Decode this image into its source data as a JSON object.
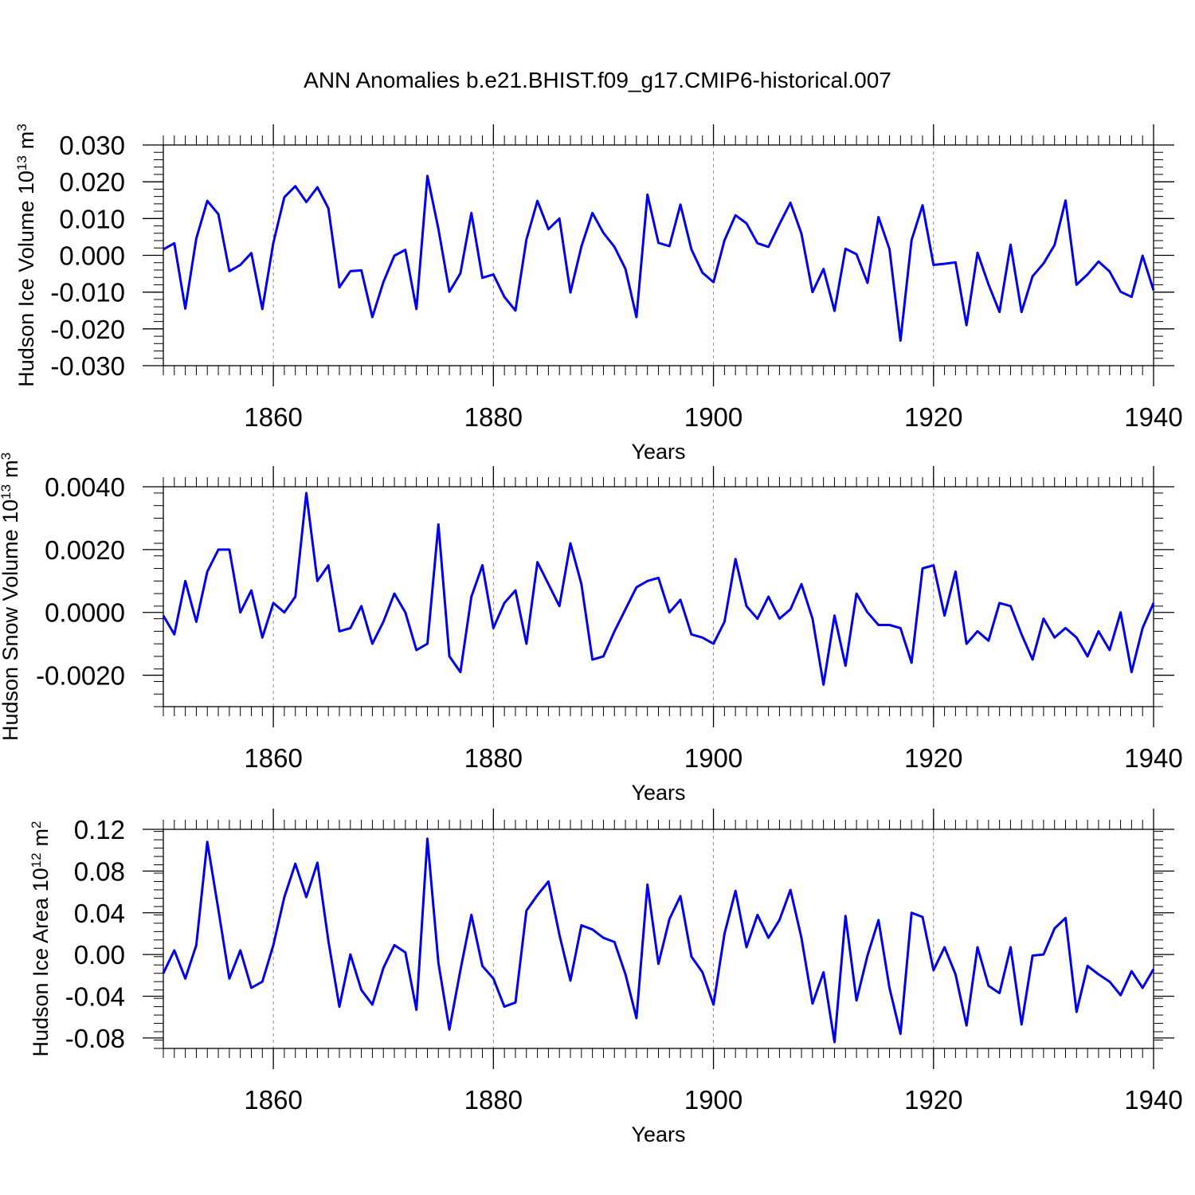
{
  "title": "ANN Anomalies b.e21.BHIST.f09_g17.CMIP6-historical.007",
  "line_color": "#0000ee",
  "chart_data": [
    {
      "type": "line",
      "ylabel": "Hudson Ice Volume 10",
      "ylabel_exp": "13",
      "ylabel_unit": "m",
      "ylabel_unit_exp": "3",
      "xlabel": "Years",
      "xlim": [
        1850,
        1940
      ],
      "ylim": [
        -0.03,
        0.03
      ],
      "xticks": [
        1860,
        1880,
        1900,
        1920,
        1940
      ],
      "yticks": [
        -0.03,
        -0.02,
        -0.01,
        0.0,
        0.01,
        0.02,
        0.03
      ],
      "ytick_labels": [
        "-0.030",
        "-0.020",
        "-0.010",
        "0.000",
        "0.010",
        "0.020",
        "0.030"
      ],
      "ytick_minor": 0.002,
      "grid_x": "dashed",
      "x_start": 1850,
      "values": [
        0.0016,
        0.0033,
        -0.0145,
        0.0046,
        0.0148,
        0.0112,
        -0.0043,
        -0.0026,
        0.0006,
        -0.0146,
        0.0034,
        0.0158,
        0.0188,
        0.0145,
        0.0185,
        0.0128,
        -0.0087,
        -0.0043,
        -0.0041,
        -0.0168,
        -0.0073,
        -0.0001,
        0.0015,
        -0.0146,
        0.0216,
        0.0072,
        -0.0099,
        -0.0049,
        0.0115,
        -0.0061,
        -0.0052,
        -0.0113,
        -0.015,
        0.0043,
        0.0148,
        0.0071,
        0.01,
        -0.0101,
        0.0024,
        0.0115,
        0.0061,
        0.0023,
        -0.0037,
        -0.0168,
        0.0165,
        0.0034,
        0.0025,
        0.0138,
        0.0016,
        -0.0047,
        -0.0073,
        0.0041,
        0.0109,
        0.0087,
        0.0033,
        0.0023,
        0.0085,
        0.0143,
        0.0059,
        -0.01,
        -0.0037,
        -0.0151,
        0.0018,
        0.0003,
        -0.0075,
        0.0104,
        0.0017,
        -0.0232,
        0.0041,
        0.0136,
        -0.0026,
        -0.0023,
        -0.0019,
        -0.019,
        0.0007,
        -0.0079,
        -0.0154,
        0.0029,
        -0.0154,
        -0.0057,
        -0.0022,
        0.0028,
        0.0149,
        -0.008,
        -0.0052,
        -0.0017,
        -0.0044,
        -0.0099,
        -0.0113,
        -0.0001,
        -0.0095
      ]
    },
    {
      "type": "line",
      "ylabel": "Hudson Snow Volume 10",
      "ylabel_exp": "13",
      "ylabel_unit": "m",
      "ylabel_unit_exp": "3",
      "xlabel": "Years",
      "xlim": [
        1850,
        1940
      ],
      "ylim": [
        -0.003,
        0.004
      ],
      "xticks": [
        1860,
        1880,
        1900,
        1920,
        1940
      ],
      "yticks": [
        -0.002,
        0.0,
        0.002,
        0.004
      ],
      "ytick_labels": [
        "-0.0020",
        "0.0000",
        "0.0020",
        "0.0040"
      ],
      "ytick_minor": 0.0004,
      "grid_x": "dashed",
      "x_start": 1850,
      "values": [
        -0.0001,
        -0.0007,
        0.001,
        -0.0003,
        0.0013,
        0.002,
        0.002,
        0.0,
        0.0007,
        -0.0008,
        0.0003,
        0.0,
        0.0005,
        0.0038,
        0.001,
        0.0015,
        -0.0006,
        -0.0005,
        0.0002,
        -0.001,
        -0.0003,
        0.0006,
        0.0,
        -0.0012,
        -0.001,
        0.0028,
        -0.0014,
        -0.0019,
        0.0005,
        0.0015,
        -0.0005,
        0.0003,
        0.0007,
        -0.001,
        0.0016,
        0.0009,
        0.0002,
        0.0022,
        0.0009,
        -0.0015,
        -0.0014,
        -0.0006,
        0.0001,
        0.0008,
        0.001,
        0.0011,
        0.0,
        0.0004,
        -0.0007,
        -0.0008,
        -0.001,
        -0.0003,
        0.0017,
        0.0002,
        -0.0002,
        0.0005,
        -0.0002,
        0.0001,
        0.0009,
        -0.0002,
        -0.0023,
        -0.0001,
        -0.0017,
        0.0006,
        0.0,
        -0.0004,
        -0.0004,
        -0.0005,
        -0.0016,
        0.0014,
        0.0015,
        -0.0001,
        0.0013,
        -0.001,
        -0.0006,
        -0.0009,
        0.0003,
        0.0002,
        -0.0007,
        -0.0015,
        -0.0002,
        -0.0008,
        -0.0005,
        -0.0008,
        -0.0014,
        -0.0006,
        -0.0012,
        0.0,
        -0.0019,
        -0.0005,
        0.0003
      ]
    },
    {
      "type": "line",
      "ylabel": "Hudson Ice Area 10",
      "ylabel_exp": "12",
      "ylabel_unit": "m",
      "ylabel_unit_exp": "2",
      "xlabel": "Years",
      "xlim": [
        1850,
        1940
      ],
      "ylim": [
        -0.09,
        0.12
      ],
      "xticks": [
        1860,
        1880,
        1900,
        1920,
        1940
      ],
      "yticks": [
        -0.08,
        -0.04,
        0.0,
        0.04,
        0.08,
        0.12
      ],
      "ytick_labels": [
        "-0.08",
        "-0.04",
        "0.00",
        "0.04",
        "0.08",
        "0.12"
      ],
      "ytick_minor": 0.008,
      "grid_x": "dashed",
      "x_start": 1850,
      "values": [
        -0.018,
        0.004,
        -0.023,
        0.009,
        0.108,
        0.043,
        -0.023,
        0.004,
        -0.032,
        -0.026,
        0.009,
        0.055,
        0.087,
        0.055,
        0.088,
        0.013,
        -0.05,
        0.0,
        -0.034,
        -0.048,
        -0.013,
        0.009,
        0.002,
        -0.053,
        0.111,
        -0.008,
        -0.072,
        -0.015,
        0.038,
        -0.011,
        -0.023,
        -0.05,
        -0.046,
        0.042,
        0.057,
        0.07,
        0.019,
        -0.025,
        0.028,
        0.024,
        0.016,
        0.012,
        -0.019,
        -0.061,
        0.067,
        -0.009,
        0.034,
        0.056,
        -0.002,
        -0.017,
        -0.048,
        0.02,
        0.061,
        0.007,
        0.038,
        0.016,
        0.033,
        0.062,
        0.016,
        -0.047,
        -0.017,
        -0.084,
        0.037,
        -0.044,
        -0.001,
        0.033,
        -0.032,
        -0.076,
        0.04,
        0.036,
        -0.015,
        0.007,
        -0.019,
        -0.068,
        0.007,
        -0.03,
        -0.037,
        0.007,
        -0.067,
        -0.001,
        0.0,
        0.025,
        0.035,
        -0.055,
        -0.011,
        -0.019,
        -0.026,
        -0.039,
        -0.016,
        -0.032,
        -0.014
      ]
    }
  ]
}
